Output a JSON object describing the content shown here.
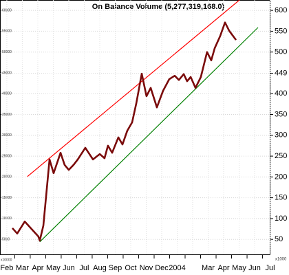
{
  "chart_data": {
    "type": "line",
    "title": "On Balance Volume (5,277,319,168.0)",
    "categories": [
      "Feb",
      "Mar",
      "Apr",
      "May",
      "Jun",
      "Jul",
      "Aug",
      "Sep",
      "Oct",
      "Nov",
      "Dec",
      "2004",
      null,
      "Mar",
      "Apr",
      "May",
      "Jun",
      "Jul"
    ],
    "x": [
      0.36,
      0.67,
      1.16,
      1.6,
      2.04,
      2.13,
      2.36,
      2.76,
      3.02,
      3.47,
      3.73,
      4,
      4.31,
      4.58,
      5.07,
      5.56,
      6,
      6.31,
      6.53,
      6.8,
      7.2,
      7.47,
      7.78,
      8.09,
      8.36,
      8.71,
      9.02,
      9.29,
      9.69,
      10.09,
      10.49,
      10.84,
      11.11,
      11.42,
      11.64,
      11.87,
      12.18,
      12.53,
      12.93,
      13.2,
      13.42,
      13.78,
      14.09,
      14.36,
      14.8
    ],
    "values": [
      77,
      64,
      93,
      75,
      57,
      47,
      83,
      242,
      209,
      258,
      229,
      217,
      229,
      242,
      270,
      242,
      255,
      245,
      275,
      258,
      295,
      278,
      311,
      331,
      377,
      448,
      394,
      414,
      367,
      407,
      435,
      443,
      433,
      447,
      430,
      440,
      414,
      440,
      500,
      480,
      509,
      539,
      571,
      551,
      529
    ],
    "color": "#7a0a0a",
    "trendlines": [
      {
        "x": [
          1.33,
          15.02
        ],
        "values": [
          201,
          625
        ],
        "color": "#ff0000"
      },
      {
        "x": [
          2.13,
          16.22
        ],
        "values": [
          44,
          559
        ],
        "color": "#008000"
      }
    ],
    "xlim": [
      -0.44,
      17.02
    ],
    "ylim": [
      14,
      625
    ],
    "yticks": [
      600,
      550,
      500,
      449,
      400,
      350,
      300,
      250,
      200,
      150,
      100,
      50
    ],
    "y_unit": "x1000",
    "y2lim": [
      1400,
      62500
    ],
    "y2ticks": [
      60000,
      55000,
      50000,
      45000,
      40000,
      35000,
      30000,
      25000,
      20000,
      15000,
      10000,
      5000
    ],
    "y2_unit": "x10000",
    "grid": true
  }
}
